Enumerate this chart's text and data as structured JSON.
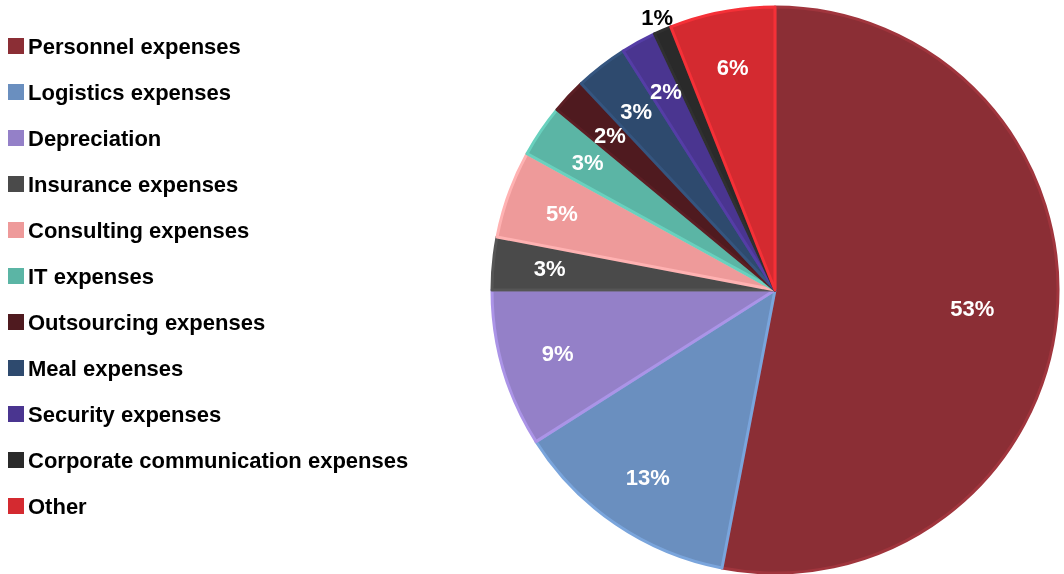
{
  "chart_data": {
    "type": "pie",
    "categories": [
      "Personnel expenses",
      "Logistics expenses",
      "Depreciation",
      "Insurance expenses",
      "Consulting expenses",
      "IT expenses",
      "Outsourcing expenses",
      "Meal expenses",
      "Security expenses",
      "Corporate communication expenses",
      "Other"
    ],
    "values": [
      53,
      13,
      9,
      3,
      5,
      3,
      2,
      3,
      2,
      1,
      6
    ],
    "value_labels": [
      "53%",
      "13%",
      "9%",
      "3%",
      "5%",
      "3%",
      "2%",
      "3%",
      "2%",
      "1%",
      "6%"
    ],
    "colors": [
      "#8b2e35",
      "#6a8fbf",
      "#9480c8",
      "#4a4a4a",
      "#ee9a9a",
      "#5bb5a5",
      "#4f1a1f",
      "#2e4a6e",
      "#4a3590",
      "#2a2a2a",
      "#d42a30"
    ],
    "legend": "left"
  }
}
